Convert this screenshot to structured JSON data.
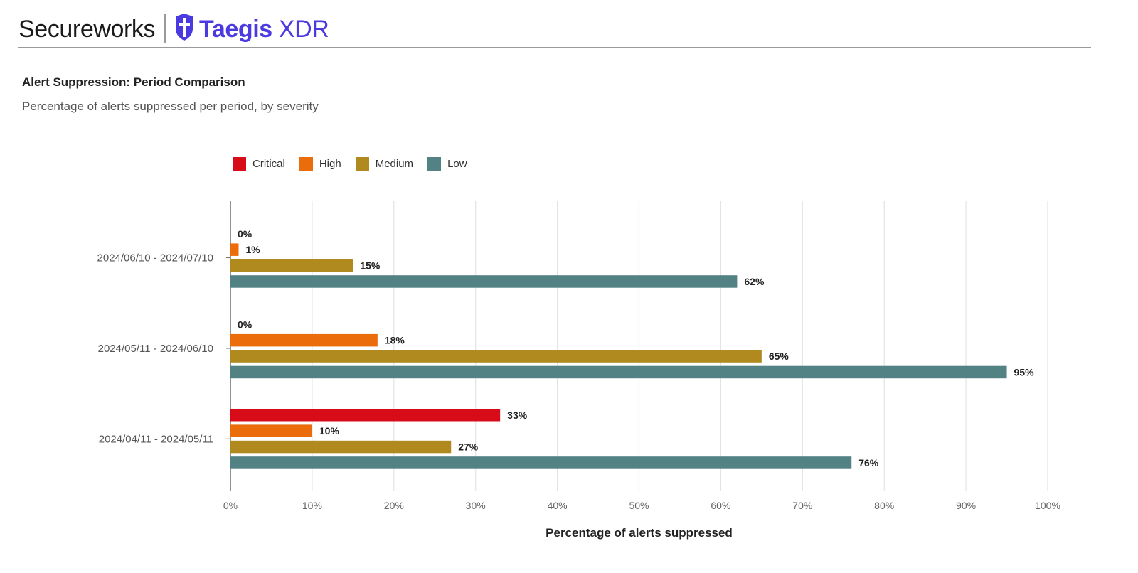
{
  "header": {
    "brand_primary": "Secureworks",
    "brand_product": "Taegis",
    "brand_product_suffix": "XDR",
    "brand_color": "#4b3ae0"
  },
  "chart_data": {
    "type": "bar",
    "orientation": "horizontal",
    "title": "Alert Suppression: Period Comparison",
    "subtitle": "Percentage of alerts suppressed per period, by severity",
    "xlabel": "Percentage of alerts suppressed",
    "ylabel": "",
    "xlim": [
      0,
      100
    ],
    "x_ticks": [
      "0%",
      "10%",
      "20%",
      "30%",
      "40%",
      "50%",
      "60%",
      "70%",
      "80%",
      "90%",
      "100%"
    ],
    "grid": true,
    "legend_position": "top-left",
    "categories": [
      "2024/06/10 - 2024/07/10",
      "2024/05/11 - 2024/06/10",
      "2024/04/11 - 2024/05/11"
    ],
    "series": [
      {
        "name": "Critical",
        "color": "#d70c18",
        "values": [
          0,
          0,
          33
        ],
        "labels": [
          "0%",
          "0%",
          "33%"
        ]
      },
      {
        "name": "High",
        "color": "#ea6c0b",
        "values": [
          1,
          18,
          10
        ],
        "labels": [
          "1%",
          "18%",
          "10%"
        ]
      },
      {
        "name": "Medium",
        "color": "#b08a1f",
        "values": [
          15,
          65,
          27
        ],
        "labels": [
          "15%",
          "65%",
          "27%"
        ]
      },
      {
        "name": "Low",
        "color": "#528283",
        "values": [
          62,
          95,
          76
        ],
        "labels": [
          "62%",
          "95%",
          "76%"
        ]
      }
    ]
  }
}
